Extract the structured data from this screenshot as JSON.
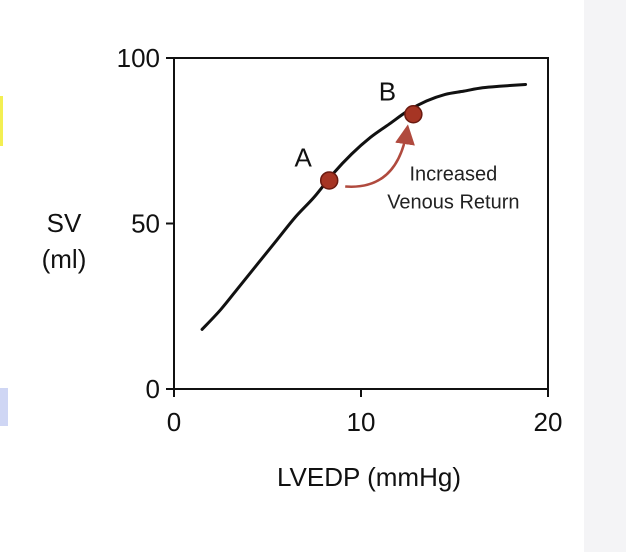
{
  "chart_data": {
    "type": "line",
    "title": "",
    "xlabel": "LVEDP (mmHg)",
    "ylabel_lines": [
      "SV",
      "(ml)"
    ],
    "xlim": [
      0,
      20
    ],
    "ylim": [
      0,
      100
    ],
    "x_ticks": [
      "0",
      "10",
      "20"
    ],
    "y_ticks": [
      "0",
      "50",
      "100"
    ],
    "grid": false,
    "series": [
      {
        "x": [
          1.5,
          2.5,
          3.5,
          4.5,
          5.5,
          6.5,
          7.5,
          8.5,
          9.5,
          10.5,
          11.5,
          12.5,
          13.5,
          14.5,
          15.5,
          16.5,
          17.5,
          18.8
        ],
        "y": [
          18,
          24,
          31,
          38,
          45,
          52,
          58,
          65,
          71,
          76,
          80,
          84,
          87,
          89,
          90,
          91,
          91.5,
          92
        ],
        "color": "#111111"
      }
    ],
    "points": [
      {
        "label": "A",
        "x": 8.3,
        "y": 63
      },
      {
        "label": "B",
        "x": 12.8,
        "y": 83
      }
    ],
    "annotation": {
      "lines": [
        "Increased",
        "Venous Return"
      ],
      "arrow_from": "A",
      "arrow_to": "B"
    },
    "colors": {
      "curve": "#111111",
      "point_fill": "#a63524",
      "point_stroke": "#6a1a10",
      "arrow": "#b04a3e"
    }
  }
}
